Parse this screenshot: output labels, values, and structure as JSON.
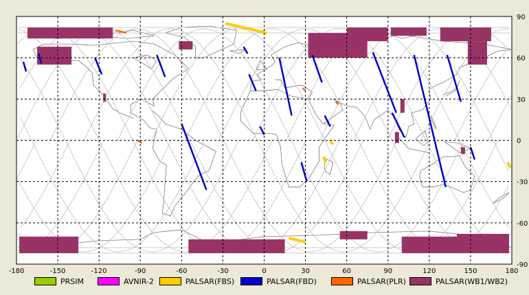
{
  "map": {
    "x_ticks": [
      "-180",
      "-150",
      "-120",
      "-90",
      "-60",
      "-30",
      "0",
      "30",
      "60",
      "90",
      "120",
      "150",
      "180"
    ],
    "y_ticks_right": [
      "90",
      "60",
      "30",
      "0",
      "-30",
      "-60",
      "-90"
    ],
    "y_ticks_left": [
      "90",
      "60",
      "30",
      "0",
      "-30",
      "-60",
      "-90"
    ],
    "lon_range": [
      -180,
      180
    ],
    "lat_range": [
      -90,
      90
    ],
    "grid": "dashed",
    "background": "#ffffff"
  },
  "legend": [
    {
      "label": "PRSIM",
      "color": "#99cc00"
    },
    {
      "label": "AVNIR-2",
      "color": "#ff00ff"
    },
    {
      "label": "PALSAR(FBS)",
      "color": "#ffcc00"
    },
    {
      "label": "PALSAR(FBD)",
      "color": "#0000cc"
    },
    {
      "label": "PALSAR(PLR)",
      "color": "#ff6600"
    },
    {
      "label": "PALSAR(WB1/WB2)",
      "color": "#993366"
    }
  ],
  "overlays": {
    "wb": [
      {
        "lon": [
          -172,
          -110
        ],
        "lat": [
          82,
          74
        ],
        "color": "#993366"
      },
      {
        "lon": [
          -165,
          -140
        ],
        "lat": [
          68,
          55
        ],
        "color": "#993366"
      },
      {
        "lon": [
          -62,
          -52
        ],
        "lat": [
          72,
          66
        ],
        "color": "#993366"
      },
      {
        "lon": [
          -117,
          -115
        ],
        "lat": [
          34,
          28
        ],
        "color": "#993366"
      },
      {
        "lon": [
          32,
          75
        ],
        "lat": [
          78,
          60
        ],
        "color": "#993366"
      },
      {
        "lon": [
          60,
          90
        ],
        "lat": [
          82,
          72
        ],
        "color": "#993366"
      },
      {
        "lon": [
          92,
          118
        ],
        "lat": [
          82,
          76
        ],
        "color": "#993366"
      },
      {
        "lon": [
          128,
          165
        ],
        "lat": [
          82,
          72
        ],
        "color": "#993366"
      },
      {
        "lon": [
          148,
          162
        ],
        "lat": [
          72,
          55
        ],
        "color": "#993366"
      },
      {
        "lon": [
          99,
          102
        ],
        "lat": [
          30,
          20
        ],
        "color": "#993366"
      },
      {
        "lon": [
          95,
          98
        ],
        "lat": [
          6,
          -2
        ],
        "color": "#993366"
      },
      {
        "lon": [
          143,
          146
        ],
        "lat": [
          -5,
          -10
        ],
        "color": "#993366"
      },
      {
        "lon": [
          -178,
          -135
        ],
        "lat": [
          -70,
          -82
        ],
        "color": "#993366"
      },
      {
        "lon": [
          -55,
          15
        ],
        "lat": [
          -72,
          -82
        ],
        "color": "#993366"
      },
      {
        "lon": [
          55,
          75
        ],
        "lat": [
          -66,
          -72
        ],
        "color": "#993366"
      },
      {
        "lon": [
          100,
          178
        ],
        "lat": [
          -70,
          -82
        ],
        "color": "#993366"
      },
      {
        "lon": [
          140,
          178
        ],
        "lat": [
          -68,
          -75
        ],
        "color": "#993366"
      }
    ],
    "fbd": [
      {
        "lon": [
          -123,
          -118
        ],
        "lat": [
          60,
          48
        ]
      },
      {
        "lon": [
          -78,
          -72
        ],
        "lat": [
          62,
          46
        ]
      },
      {
        "lon": [
          -60,
          -42
        ],
        "lat": [
          12,
          -36
        ]
      },
      {
        "lon": [
          -11,
          -6
        ],
        "lat": [
          48,
          36
        ]
      },
      {
        "lon": [
          -3,
          0
        ],
        "lat": [
          10,
          4
        ]
      },
      {
        "lon": [
          11,
          20
        ],
        "lat": [
          60,
          18
        ]
      },
      {
        "lon": [
          35,
          42
        ],
        "lat": [
          62,
          42
        ]
      },
      {
        "lon": [
          44,
          48
        ],
        "lat": [
          18,
          10
        ]
      },
      {
        "lon": [
          27,
          31
        ],
        "lat": [
          -16,
          -30
        ]
      },
      {
        "lon": [
          79,
          96
        ],
        "lat": [
          64,
          20
        ]
      },
      {
        "lon": [
          93,
          102
        ],
        "lat": [
          20,
          2
        ]
      },
      {
        "lon": [
          109,
          132
        ],
        "lat": [
          62,
          -34
        ]
      },
      {
        "lon": [
          133,
          143
        ],
        "lat": [
          62,
          28
        ]
      },
      {
        "lon": [
          150,
          153
        ],
        "lat": [
          -5,
          -14
        ]
      },
      {
        "lon": [
          -164,
          -162
        ],
        "lat": [
          63,
          56
        ]
      },
      {
        "lon": [
          -175,
          -173
        ],
        "lat": [
          57,
          50
        ]
      },
      {
        "lon": [
          -15,
          -12
        ],
        "lat": [
          68,
          63
        ]
      }
    ],
    "fbs": [
      {
        "lon": [
          -28,
          2
        ],
        "lat": [
          85,
          78
        ]
      },
      {
        "lon": [
          18,
          30
        ],
        "lat": [
          -71,
          -74
        ]
      },
      {
        "lon": [
          177,
          179
        ],
        "lat": [
          -16,
          -20
        ]
      },
      {
        "lon": [
          43,
          45
        ],
        "lat": [
          -12,
          -16
        ]
      },
      {
        "lon": [
          48,
          50
        ],
        "lat": [
          0,
          -3
        ]
      }
    ],
    "plr": [
      {
        "lon": [
          -108,
          -100
        ],
        "lat": [
          80,
          78
        ]
      },
      {
        "lon": [
          -92,
          -89
        ],
        "lat": [
          0,
          -2
        ]
      },
      {
        "lon": [
          28,
          30
        ],
        "lat": [
          38,
          36
        ]
      },
      {
        "lon": [
          52,
          54
        ],
        "lat": [
          28,
          26
        ]
      }
    ]
  }
}
